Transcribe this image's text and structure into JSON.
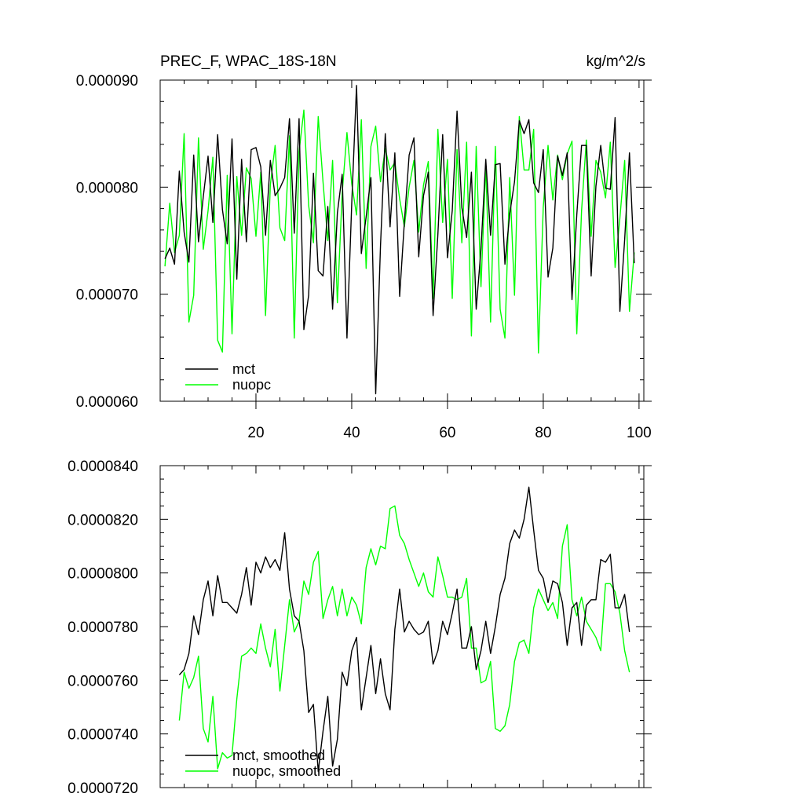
{
  "chart_data": [
    {
      "type": "line",
      "title": "PREC_F, WPAC_18S-18N",
      "units": "kg/m^2/s",
      "xlim": [
        0,
        101
      ],
      "ylim": [
        6e-05,
        9e-05
      ],
      "x_ticks": [
        "20",
        "40",
        "60",
        "80",
        "100"
      ],
      "y_ticks": [
        "0.000060",
        "0.000070",
        "0.000080",
        "0.000090"
      ],
      "legend": "bottom-left",
      "series": [
        {
          "name": "mct",
          "color": "#000000",
          "x_start": 1,
          "values": [
            7.33e-05,
            7.43e-05,
            7.28e-05,
            8.15e-05,
            7.58e-05,
            7.3e-05,
            8.3e-05,
            7.49e-05,
            7.91e-05,
            8.29e-05,
            7.67e-05,
            8.49e-05,
            7.79e-05,
            7.47e-05,
            8.45e-05,
            7.14e-05,
            8.26e-05,
            7.49e-05,
            8.35e-05,
            8.37e-05,
            8.19e-05,
            7.55e-05,
            8.25e-05,
            7.92e-05,
            7.99e-05,
            8.09e-05,
            8.64e-05,
            7.57e-05,
            8.64e-05,
            6.67e-05,
            6.99e-05,
            8.13e-05,
            7.22e-05,
            7.17e-05,
            7.82e-05,
            6.86e-05,
            7.76e-05,
            8.12e-05,
            6.59e-05,
            7.85e-05,
            8.95e-05,
            7.38e-05,
            7.72e-05,
            8.09e-05,
            6.07e-05,
            7.45e-05,
            8.5e-05,
            7.63e-05,
            8.32e-05,
            6.98e-05,
            7.67e-05,
            8.3e-05,
            8.46e-05,
            7.35e-05,
            7.92e-05,
            8.14e-05,
            6.8e-05,
            7.56e-05,
            8.49e-05,
            7.34e-05,
            7.78e-05,
            8.71e-05,
            7.81e-05,
            7.53e-05,
            8.14e-05,
            6.86e-05,
            7.42e-05,
            8.26e-05,
            7.55e-05,
            8.21e-05,
            8.22e-05,
            7.28e-05,
            7.75e-05,
            8.05e-05,
            8.62e-05,
            8.5e-05,
            8.63e-05,
            8.04e-05,
            7.95e-05,
            8.35e-05,
            7.16e-05,
            7.43e-05,
            8.29e-05,
            8.11e-05,
            8.32e-05,
            6.95e-05,
            7.74e-05,
            8.39e-05,
            8.39e-05,
            7.17e-05,
            8.01e-05,
            8.39e-05,
            7.99e-05,
            7.98e-05,
            8.65e-05,
            6.84e-05,
            7.51e-05,
            8.32e-05,
            7.29e-05
          ]
        },
        {
          "name": "nuopc",
          "color": "#00ff00",
          "x_start": 1,
          "values": [
            7.26e-05,
            7.85e-05,
            7.39e-05,
            7.55e-05,
            8.5e-05,
            6.74e-05,
            6.99e-05,
            8.46e-05,
            7.42e-05,
            7.78e-05,
            8.28e-05,
            6.57e-05,
            6.46e-05,
            8.11e-05,
            6.63e-05,
            8.1e-05,
            7.55e-05,
            8.18e-05,
            8.08e-05,
            7.54e-05,
            8.14e-05,
            6.8e-05,
            8.02e-05,
            8.39e-05,
            7.62e-05,
            7.5e-05,
            8.48e-05,
            6.59e-05,
            8.33e-05,
            8.72e-05,
            7.83e-05,
            7.48e-05,
            8.66e-05,
            8.05e-05,
            7.5e-05,
            8.25e-05,
            6.92e-05,
            7.94e-05,
            8.51e-05,
            8.03e-05,
            7.74e-05,
            8.63e-05,
            7.24e-05,
            8.38e-05,
            8.57e-05,
            8.05e-05,
            8.36e-05,
            8.16e-05,
            8.23e-05,
            7.89e-05,
            7.63e-05,
            8e-05,
            8.25e-05,
            7.58e-05,
            8.02e-05,
            8.24e-05,
            6.96e-05,
            8.54e-05,
            7.67e-05,
            8.26e-05,
            6.96e-05,
            8.35e-05,
            7.48e-05,
            8.42e-05,
            6.61e-05,
            8.38e-05,
            7.07e-05,
            8.21e-05,
            6.74e-05,
            8.38e-05,
            6.86e-05,
            6.59e-05,
            8.09e-05,
            6.99e-05,
            8.66e-05,
            8.16e-05,
            8.16e-05,
            8.54e-05,
            6.45e-05,
            7.81e-05,
            8.39e-05,
            7.88e-05,
            8.3e-05,
            8.07e-05,
            8.31e-05,
            8.43e-05,
            6.63e-05,
            7.78e-05,
            8.44e-05,
            7.54e-05,
            8.25e-05,
            8.14e-05,
            7.9e-05,
            8.42e-05,
            7.25e-05,
            7.71e-05,
            8.25e-05,
            6.84e-05,
            7.39e-05
          ]
        }
      ]
    },
    {
      "type": "line",
      "xlim": [
        0,
        101
      ],
      "ylim": [
        7.2e-05,
        8.4e-05
      ],
      "y_ticks": [
        "0.0000720",
        "0.0000740",
        "0.0000760",
        "0.0000780",
        "0.0000800",
        "0.0000820",
        "0.0000840"
      ],
      "legend": "bottom-left",
      "series": [
        {
          "name": "mct, smoothed",
          "color": "#000000",
          "x_start": 4,
          "values": [
            7.62e-05,
            7.64e-05,
            7.7e-05,
            7.84e-05,
            7.77e-05,
            7.9e-05,
            7.97e-05,
            7.84e-05,
            7.99e-05,
            7.89e-05,
            7.89e-05,
            7.87e-05,
            7.85e-05,
            7.92e-05,
            8.02e-05,
            7.88e-05,
            8.04e-05,
            8e-05,
            8.06e-05,
            8.02e-05,
            8.05e-05,
            8.01e-05,
            8.15e-05,
            7.94e-05,
            7.84e-05,
            7.82e-05,
            7.71e-05,
            7.48e-05,
            7.51e-05,
            7.26e-05,
            7.41e-05,
            7.54e-05,
            7.28e-05,
            7.38e-05,
            7.63e-05,
            7.58e-05,
            7.71e-05,
            7.76e-05,
            7.49e-05,
            7.61e-05,
            7.73e-05,
            7.55e-05,
            7.68e-05,
            7.55e-05,
            7.49e-05,
            7.79e-05,
            7.94e-05,
            7.78e-05,
            7.82e-05,
            7.79e-05,
            7.77e-05,
            7.78e-05,
            7.82e-05,
            7.66e-05,
            7.71e-05,
            7.82e-05,
            7.77e-05,
            7.85e-05,
            7.94e-05,
            7.72e-05,
            7.72e-05,
            7.8e-05,
            7.64e-05,
            7.71e-05,
            7.82e-05,
            7.7e-05,
            7.8e-05,
            7.92e-05,
            7.98e-05,
            8.11e-05,
            8.16e-05,
            8.13e-05,
            8.2e-05,
            8.32e-05,
            8.16e-05,
            8.01e-05,
            7.98e-05,
            7.89e-05,
            7.97e-05,
            7.96e-05,
            7.89e-05,
            7.73e-05,
            7.87e-05,
            7.89e-05,
            7.73e-05,
            7.88e-05,
            7.9e-05,
            7.9e-05,
            8.05e-05,
            8.04e-05,
            8.07e-05,
            7.87e-05,
            7.87e-05,
            7.92e-05,
            7.78e-05
          ]
        },
        {
          "name": "nuopc, smoothed",
          "color": "#00ff00",
          "x_start": 4,
          "values": [
            7.45e-05,
            7.63e-05,
            7.57e-05,
            7.61e-05,
            7.69e-05,
            7.42e-05,
            7.37e-05,
            7.54e-05,
            7.27e-05,
            7.33e-05,
            7.31e-05,
            7.32e-05,
            7.53e-05,
            7.69e-05,
            7.7e-05,
            7.72e-05,
            7.7e-05,
            7.81e-05,
            7.72e-05,
            7.65e-05,
            7.79e-05,
            7.56e-05,
            7.73e-05,
            7.9e-05,
            7.78e-05,
            7.82e-05,
            7.97e-05,
            7.92e-05,
            8.04e-05,
            8.08e-05,
            7.83e-05,
            7.9e-05,
            7.95e-05,
            7.84e-05,
            7.94e-05,
            7.84e-05,
            7.91e-05,
            7.88e-05,
            7.81e-05,
            8.02e-05,
            8.09e-05,
            8.03e-05,
            8.1e-05,
            8.09e-05,
            8.24e-05,
            8.25e-05,
            8.14e-05,
            8.11e-05,
            8.05e-05,
            8e-05,
            7.95e-05,
            8e-05,
            7.93e-05,
            7.91e-05,
            8.06e-05,
            7.99e-05,
            7.91e-05,
            7.91e-05,
            7.9e-05,
            7.91e-05,
            7.98e-05,
            7.72e-05,
            7.72e-05,
            7.59e-05,
            7.6e-05,
            7.67e-05,
            7.42e-05,
            7.41e-05,
            7.43e-05,
            7.51e-05,
            7.67e-05,
            7.74e-05,
            7.75e-05,
            7.7e-05,
            7.87e-05,
            7.94e-05,
            7.9e-05,
            7.86e-05,
            7.89e-05,
            7.83e-05,
            8.1e-05,
            8.18e-05,
            7.9e-05,
            7.84e-05,
            7.91e-05,
            7.82e-05,
            7.79e-05,
            7.76e-05,
            7.71e-05,
            7.96e-05,
            7.96e-05,
            7.93e-05,
            7.85e-05,
            7.71e-05,
            7.63e-05
          ]
        }
      ]
    }
  ]
}
